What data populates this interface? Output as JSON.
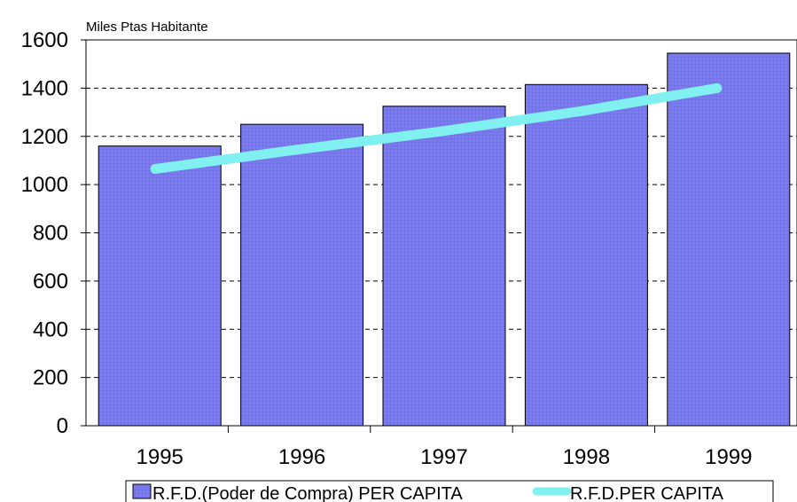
{
  "chart_data": {
    "type": "bar",
    "ylabel": "Miles Ptas Habitante",
    "categories": [
      "1995",
      "1996",
      "1997",
      "1998",
      "1999"
    ],
    "series": [
      {
        "name": "R.F.D.(Poder de Compra) PER CAPITA",
        "type": "bar",
        "values": [
          1160,
          1250,
          1325,
          1415,
          1545
        ],
        "color": "#7878ee"
      },
      {
        "name": "R.F.D.PER CAPITA",
        "type": "line",
        "values": [
          1065,
          1145,
          1220,
          1305,
          1400
        ],
        "color": "#80f0f0"
      }
    ],
    "ylim": [
      0,
      1600
    ],
    "yticks": [
      "0",
      "200",
      "400",
      "600",
      "800",
      "1000",
      "1200",
      "1400",
      "1600"
    ],
    "grid": "horizontal dashed",
    "legend": "bottom"
  }
}
